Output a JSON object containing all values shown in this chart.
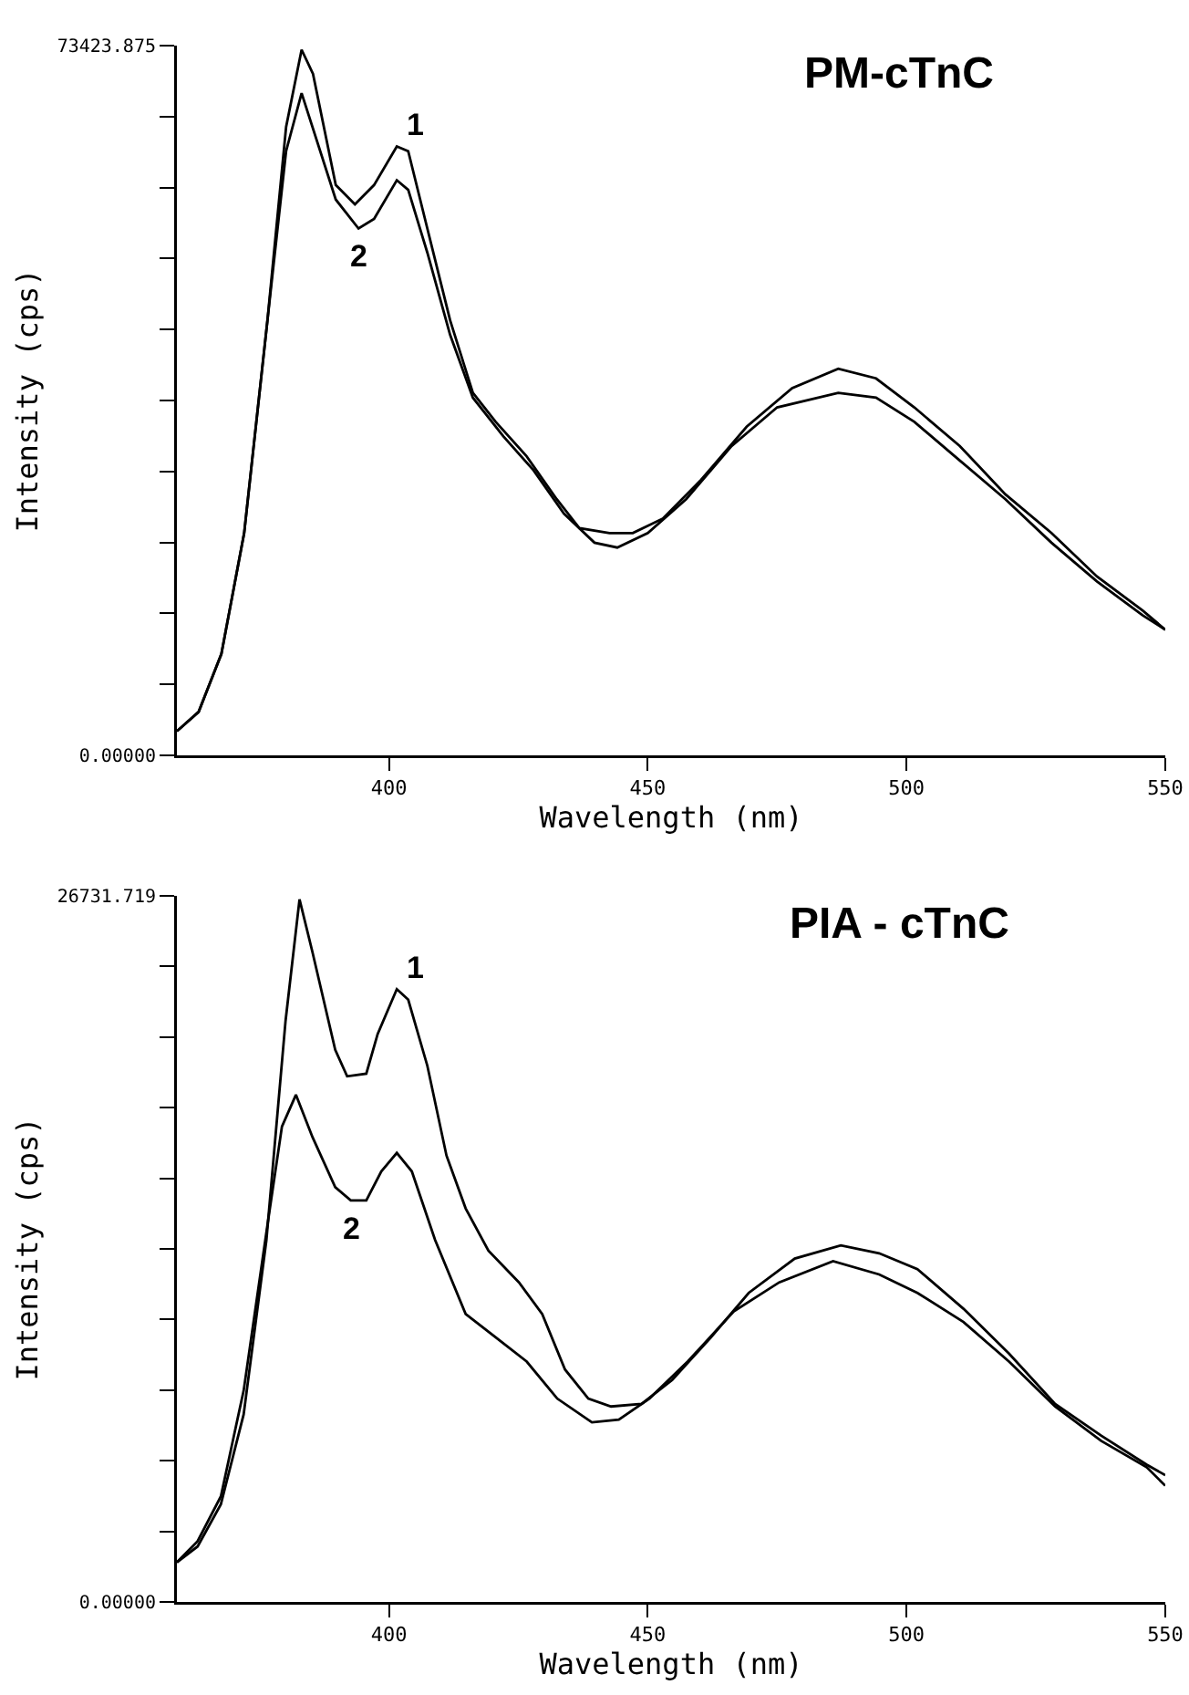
{
  "chart_data": [
    {
      "type": "line",
      "title": "PM-cTnC",
      "xlabel": "Wavelength (nm)",
      "ylabel": "Intensity (cps)",
      "grid": false,
      "legend": false,
      "marker": "none",
      "line_style": "solid",
      "xlim": [
        359,
        550
      ],
      "xticks": [
        400,
        450,
        500,
        550
      ],
      "ylim": [
        0,
        73423.875
      ],
      "yticks": [
        {
          "value": 0,
          "label": "0.00000"
        },
        {
          "value": 7342.3875,
          "label": null
        },
        {
          "value": 14684.775,
          "label": null
        },
        {
          "value": 22027.1625,
          "label": null
        },
        {
          "value": 29369.55,
          "label": null
        },
        {
          "value": 36711.9375,
          "label": null
        },
        {
          "value": 44054.325,
          "label": null
        },
        {
          "value": 51396.7125,
          "label": null
        },
        {
          "value": 58739.1,
          "label": null
        },
        {
          "value": 66081.4875,
          "label": null
        },
        73423.875
      ],
      "series": [
        {
          "name": "1",
          "color": "#000000",
          "x": [
            359,
            363.2,
            367.6,
            372,
            376.5,
            380.1,
            383.1,
            385.3,
            389.7,
            393.4,
            397.1,
            401.5,
            403.7,
            407.4,
            411.8,
            416.2,
            420.6,
            426.5,
            432.4,
            436.8,
            442.6,
            447.1,
            452.9,
            460.3,
            469.1,
            477.9,
            486.8,
            494.1,
            501.5,
            510.3,
            519.1,
            528,
            536.8,
            545.6,
            550
          ],
          "values": [
            2500,
            4500,
            10500,
            23000,
            45000,
            65000,
            73000,
            70500,
            59000,
            57000,
            59000,
            63000,
            62500,
            54500,
            45000,
            37500,
            34500,
            31000,
            26500,
            23500,
            23000,
            23000,
            24500,
            28500,
            34000,
            38000,
            40000,
            39000,
            36000,
            32000,
            27000,
            23000,
            18500,
            15000,
            13000
          ]
        },
        {
          "name": "2",
          "color": "#000000",
          "x": [
            359,
            363.2,
            367.6,
            372,
            376.5,
            380.1,
            383.1,
            389.7,
            394.1,
            397.1,
            401.5,
            403.7,
            407.4,
            411.8,
            416.2,
            422.1,
            427.9,
            433.8,
            439.7,
            444.1,
            450,
            457.4,
            466.2,
            475,
            486.8,
            494.1,
            501.5,
            510.3,
            519.1,
            528,
            536.8,
            545.6,
            550
          ],
          "values": [
            2500,
            4500,
            10500,
            23000,
            45000,
            62500,
            68500,
            57500,
            54500,
            55500,
            59500,
            58500,
            52000,
            43500,
            37000,
            33000,
            29500,
            25000,
            22000,
            21500,
            23000,
            26500,
            32000,
            36000,
            37500,
            37000,
            34500,
            30500,
            26500,
            22000,
            18000,
            14500,
            13000
          ]
        }
      ]
    },
    {
      "type": "line",
      "title": "PIA - cTnC",
      "xlabel": "Wavelength (nm)",
      "ylabel": "Intensity (cps)",
      "grid": false,
      "legend": false,
      "marker": "none",
      "line_style": "solid",
      "xlim": [
        359,
        550
      ],
      "xticks": [
        400,
        450,
        500,
        550
      ],
      "ylim": [
        0,
        26731.719
      ],
      "yticks": [
        {
          "value": 0,
          "label": "0.00000"
        },
        {
          "value": 2673.1719,
          "label": null
        },
        {
          "value": 5346.3438,
          "label": null
        },
        {
          "value": 8019.5157,
          "label": null
        },
        {
          "value": 10692.6876,
          "label": null
        },
        {
          "value": 13365.8595,
          "label": null
        },
        {
          "value": 16039.0314,
          "label": null
        },
        {
          "value": 18712.2033,
          "label": null
        },
        {
          "value": 21385.3752,
          "label": null
        },
        {
          "value": 24058.5471,
          "label": null
        },
        26731.719
      ],
      "series": [
        {
          "name": "1",
          "color": "#000000",
          "x": [
            359,
            363,
            367.5,
            371.9,
            376.3,
            380,
            382.7,
            385.2,
            389.6,
            391.9,
            395.6,
            397.8,
            401.5,
            403.7,
            407.4,
            411.1,
            414.8,
            419.2,
            425.1,
            429.6,
            434,
            438.5,
            442.9,
            448.8,
            454.7,
            462.1,
            469.5,
            478.4,
            487.3,
            494.7,
            502.1,
            511,
            519.8,
            528.7,
            537.6,
            546.4,
            550
          ],
          "values": [
            1500,
            2100,
            3700,
            7100,
            13700,
            22000,
            26600,
            24600,
            20900,
            19900,
            20000,
            21500,
            23200,
            22800,
            20300,
            16900,
            14900,
            13300,
            12100,
            10900,
            8800,
            7700,
            7400,
            7500,
            8400,
            10000,
            11700,
            13000,
            13500,
            13200,
            12600,
            11100,
            9400,
            7500,
            6300,
            5200,
            4800
          ]
        },
        {
          "name": "2",
          "color": "#000000",
          "x": [
            359,
            363,
            367.5,
            371.9,
            376.3,
            379.3,
            382,
            385.2,
            389.6,
            392.6,
            395.6,
            398.5,
            401.5,
            404.4,
            408.9,
            414.8,
            420.7,
            426.6,
            432.5,
            439.2,
            444.4,
            450.3,
            457.7,
            466.6,
            475.4,
            485.8,
            494.7,
            502.1,
            511,
            519.8,
            528.7,
            537.6,
            546.4,
            550
          ],
          "values": [
            1500,
            2300,
            4000,
            8000,
            14000,
            18000,
            19200,
            17600,
            15700,
            15200,
            15200,
            16300,
            17000,
            16300,
            13700,
            10900,
            10000,
            9100,
            7700,
            6800,
            6900,
            7700,
            9100,
            11000,
            12100,
            12900,
            12400,
            11700,
            10600,
            9100,
            7400,
            6100,
            5100,
            4400
          ]
        }
      ]
    }
  ]
}
